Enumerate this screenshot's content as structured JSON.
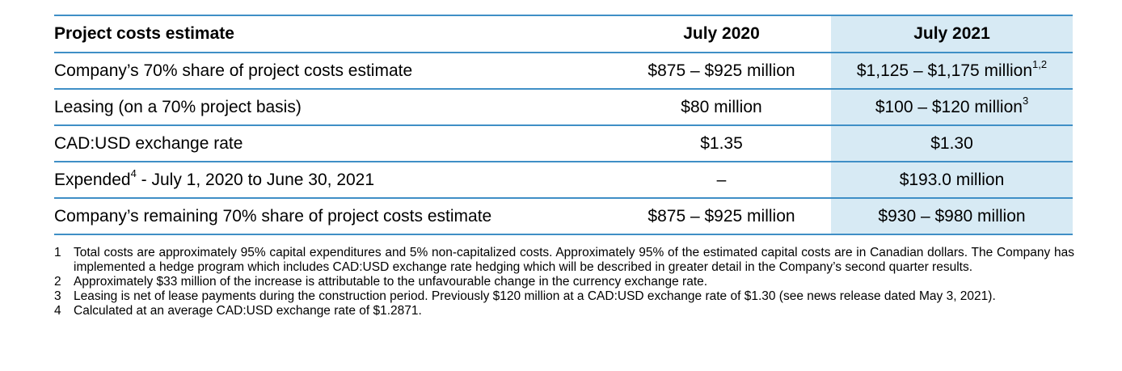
{
  "table": {
    "header": {
      "label": "Project costs estimate",
      "col_2020": "July 2020",
      "col_2021": "July 2021"
    },
    "rows": [
      {
        "label": "Company’s 70% share of project costs estimate",
        "label_sup": "",
        "val_2020": "$875 – $925 million",
        "val_2021": "$1,125 – $1,175 million",
        "val_2021_sup": "1,2"
      },
      {
        "label": "Leasing (on a 70% project basis)",
        "label_sup": "",
        "val_2020": "$80 million",
        "val_2021": "$100 – $120 million",
        "val_2021_sup": "3"
      },
      {
        "label": "CAD:USD exchange rate",
        "label_sup": "",
        "val_2020": "$1.35",
        "val_2021": "$1.30",
        "val_2021_sup": ""
      },
      {
        "label": "Expended",
        "label_sup": "4",
        "label_rest": " - July 1, 2020 to June 30, 2021",
        "val_2020": "–",
        "val_2021": "$193.0 million",
        "val_2021_sup": ""
      },
      {
        "label": "Company’s remaining 70% share of project costs estimate",
        "label_sup": "",
        "val_2020": "$875 – $925 million",
        "val_2021": "$930 – $980 million",
        "val_2021_sup": ""
      }
    ]
  },
  "colors": {
    "rule": "#3f8fc6",
    "highlight_column": "#d7eaf4"
  },
  "footnotes": [
    {
      "num": "1",
      "text": "Total costs are approximately 95% capital expenditures and 5% non-capitalized costs. Approximately 95% of the estimated capital costs are in Canadian dollars. The Company has implemented a hedge program which includes CAD:USD exchange rate hedging which will be described in greater detail in the Company’s second quarter results."
    },
    {
      "num": "2",
      "text": "Approximately $33 million of the increase is attributable to the unfavourable change in the currency exchange rate."
    },
    {
      "num": "3",
      "text": "Leasing is net of lease payments during the construction period. Previously $120 million at a CAD:USD exchange rate of $1.30 (see news release dated May 3, 2021)."
    },
    {
      "num": "4",
      "text": "Calculated at an average CAD:USD exchange rate of $1.2871."
    }
  ]
}
